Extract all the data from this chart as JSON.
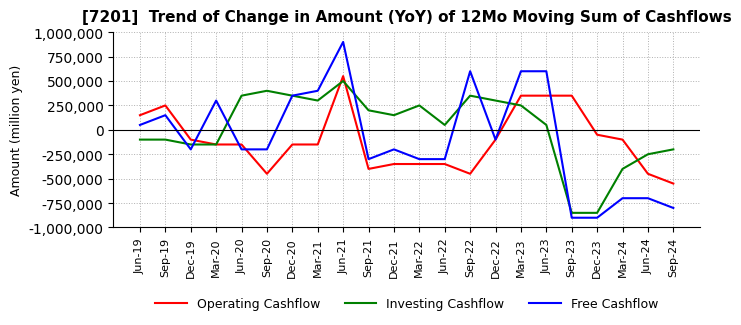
{
  "title": "[7201]  Trend of Change in Amount (YoY) of 12Mo Moving Sum of Cashflows",
  "ylabel": "Amount (million yen)",
  "ylim": [
    -1000000,
    1000000
  ],
  "yticks": [
    -1000000,
    -750000,
    -500000,
    -250000,
    0,
    250000,
    500000,
    750000,
    1000000
  ],
  "dates": [
    "Jun-19",
    "Sep-19",
    "Dec-19",
    "Mar-20",
    "Jun-20",
    "Sep-20",
    "Dec-20",
    "Mar-21",
    "Jun-21",
    "Sep-21",
    "Dec-21",
    "Mar-22",
    "Jun-22",
    "Sep-22",
    "Dec-22",
    "Mar-23",
    "Jun-23",
    "Sep-23",
    "Dec-23",
    "Mar-24",
    "Jun-24",
    "Sep-24"
  ],
  "operating": [
    150000,
    250000,
    -100000,
    -150000,
    -150000,
    -450000,
    -150000,
    -150000,
    550000,
    -400000,
    -350000,
    -350000,
    -350000,
    -450000,
    -100000,
    350000,
    350000,
    350000,
    -50000,
    -100000,
    -450000,
    -550000
  ],
  "investing": [
    -100000,
    -100000,
    -150000,
    -150000,
    350000,
    400000,
    350000,
    300000,
    500000,
    200000,
    150000,
    250000,
    50000,
    350000,
    300000,
    250000,
    50000,
    -850000,
    -850000,
    -400000,
    -250000,
    -200000
  ],
  "free": [
    50000,
    150000,
    -200000,
    300000,
    -200000,
    -200000,
    350000,
    400000,
    900000,
    -300000,
    -200000,
    -300000,
    -300000,
    600000,
    -100000,
    600000,
    600000,
    -900000,
    -900000,
    -700000,
    -700000,
    -800000
  ],
  "op_color": "#ff0000",
  "inv_color": "#008000",
  "free_color": "#0000ff",
  "bg_color": "#ffffff",
  "grid_color": "#b0b0b0",
  "grid_style": "dotted"
}
